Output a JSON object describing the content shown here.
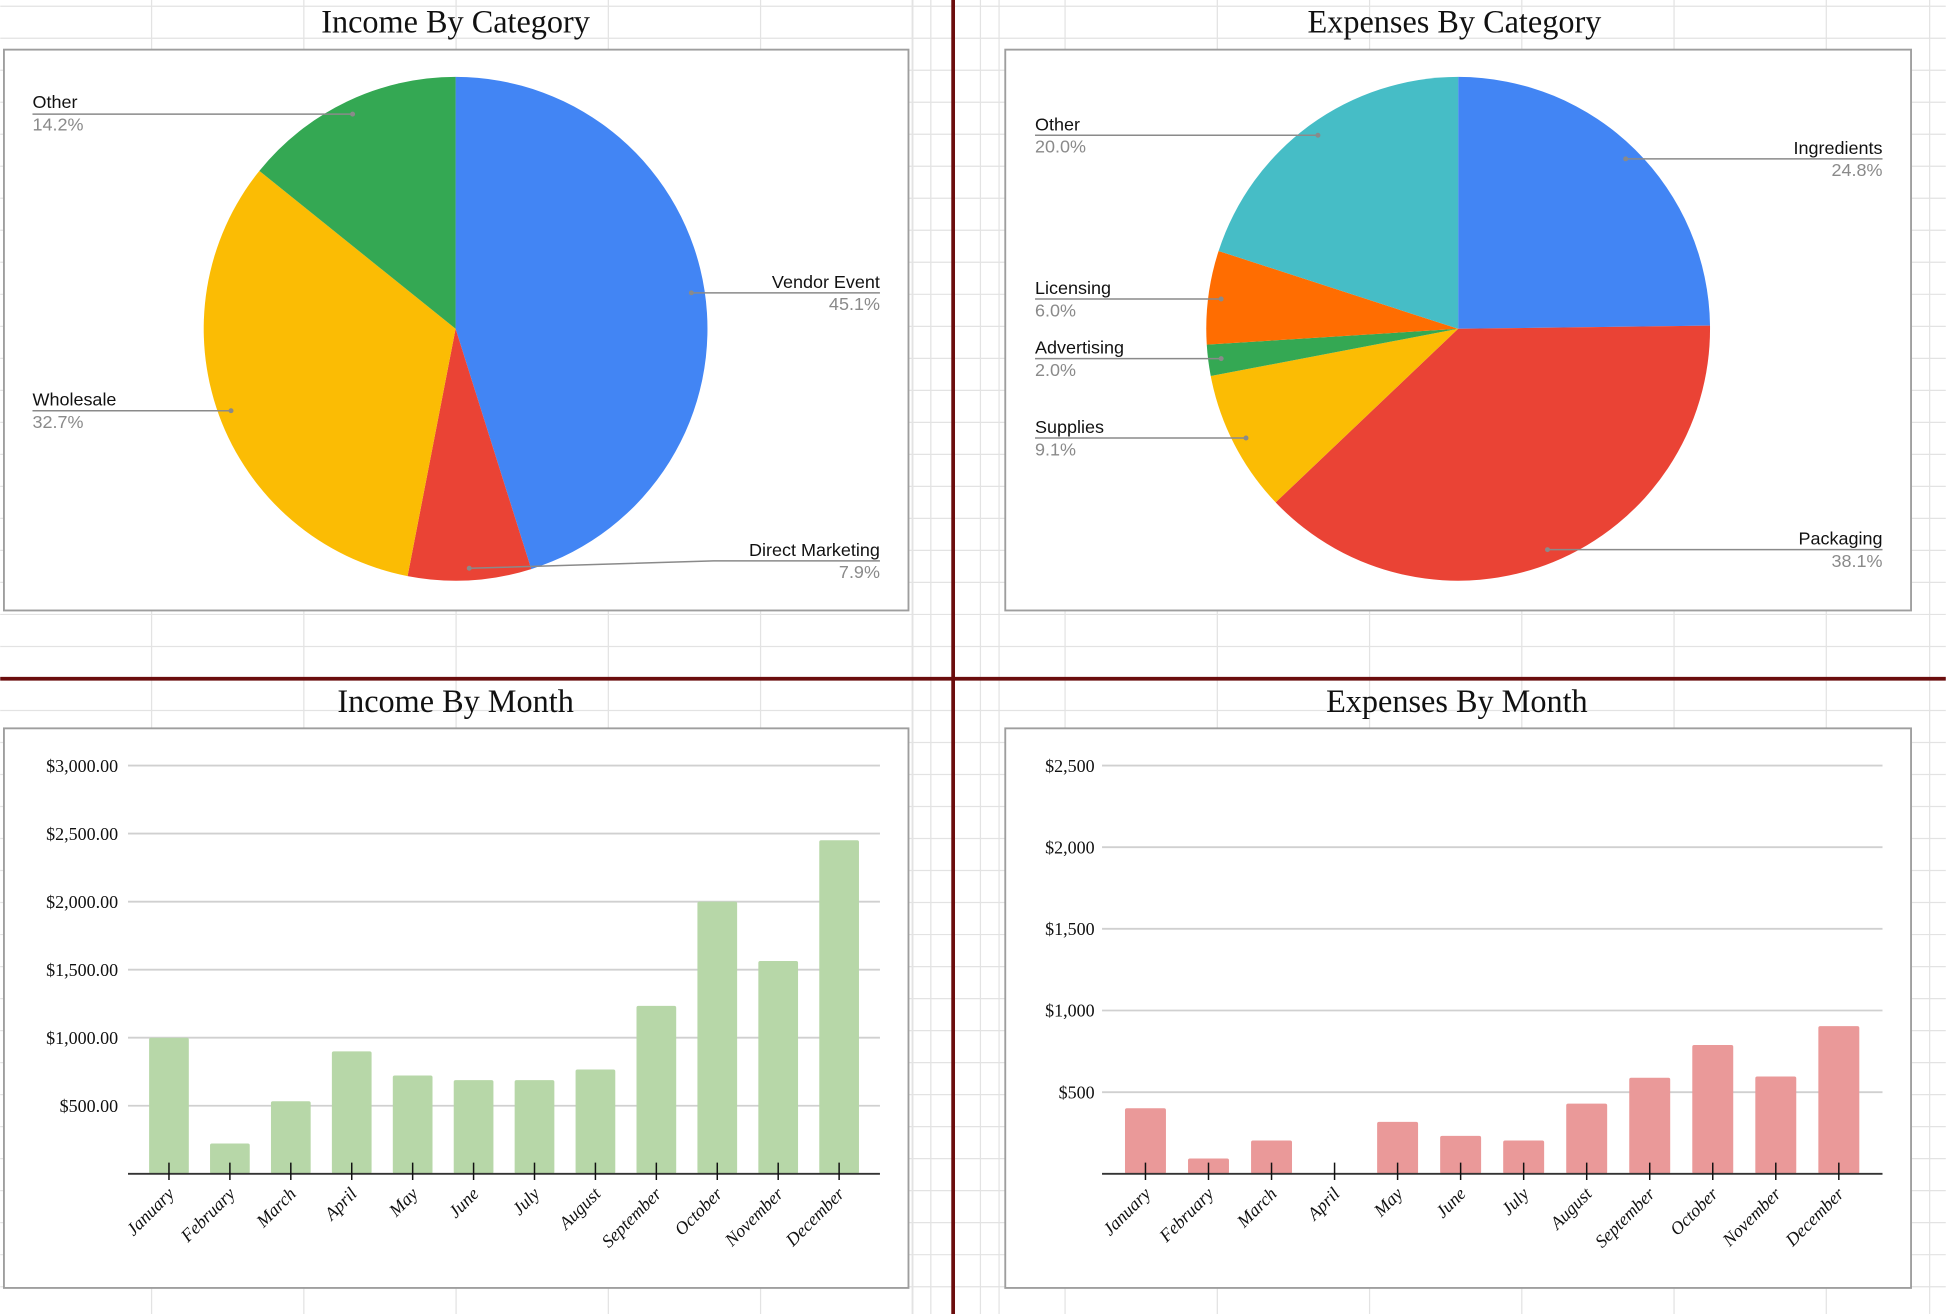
{
  "colors": {
    "divider": "#6b0d0d",
    "income_bar": "#b7d7a8",
    "expense_bar": "#ea9999",
    "pie": [
      "#4285f4",
      "#ea4335",
      "#fbbc04",
      "#34a853",
      "#ff6d01",
      "#46bdc6"
    ]
  },
  "chart_data": [
    {
      "type": "pie",
      "title": "Income By Category",
      "slices": [
        {
          "label": "Vendor Event",
          "value": 45.1,
          "pct": "45.1%",
          "color": "#4285f4"
        },
        {
          "label": "Direct Marketing",
          "value": 7.9,
          "pct": "7.9%",
          "color": "#ea4335"
        },
        {
          "label": "Wholesale",
          "value": 32.7,
          "pct": "32.7%",
          "color": "#fbbc04"
        },
        {
          "label": "Other",
          "value": 14.2,
          "pct": "14.2%",
          "color": "#34a853"
        }
      ]
    },
    {
      "type": "pie",
      "title": "Expenses By Category",
      "slices": [
        {
          "label": "Ingredients",
          "value": 24.8,
          "pct": "24.8%",
          "color": "#4285f4"
        },
        {
          "label": "Packaging",
          "value": 38.1,
          "pct": "38.1%",
          "color": "#ea4335"
        },
        {
          "label": "Supplies",
          "value": 9.1,
          "pct": "9.1%",
          "color": "#fbbc04"
        },
        {
          "label": "Advertising",
          "value": 2.0,
          "pct": "2.0%",
          "color": "#34a853"
        },
        {
          "label": "Licensing",
          "value": 6.0,
          "pct": "6.0%",
          "color": "#ff6d01"
        },
        {
          "label": "Other",
          "value": 20.0,
          "pct": "20.0%",
          "color": "#46bdc6"
        }
      ]
    },
    {
      "type": "bar",
      "title": "Income By Month",
      "categories": [
        "January",
        "February",
        "March",
        "April",
        "May",
        "June",
        "July",
        "August",
        "September",
        "October",
        "November",
        "December"
      ],
      "values": [
        1000,
        223,
        533,
        900,
        722,
        688,
        688,
        766,
        1234,
        2000,
        1564,
        2451
      ],
      "ylim": [
        0,
        3000
      ],
      "yticks": [
        "$500.00",
        "$1,000.00",
        "$1,500.00",
        "$2,000.00",
        "$2,500.00",
        "$3,000.00"
      ],
      "grid": true,
      "color": "#b7d7a8"
    },
    {
      "type": "bar",
      "title": "Expenses By Month",
      "categories": [
        "January",
        "February",
        "March",
        "April",
        "May",
        "June",
        "July",
        "August",
        "September",
        "October",
        "November",
        "December"
      ],
      "values": [
        401,
        94,
        204,
        0,
        318,
        232,
        204,
        430,
        588,
        789,
        596,
        904
      ],
      "ylim": [
        0,
        2500
      ],
      "yticks": [
        "$500",
        "$1,000",
        "$1,500",
        "$2,000",
        "$2,500"
      ],
      "grid": true,
      "color": "#ea9999"
    }
  ]
}
